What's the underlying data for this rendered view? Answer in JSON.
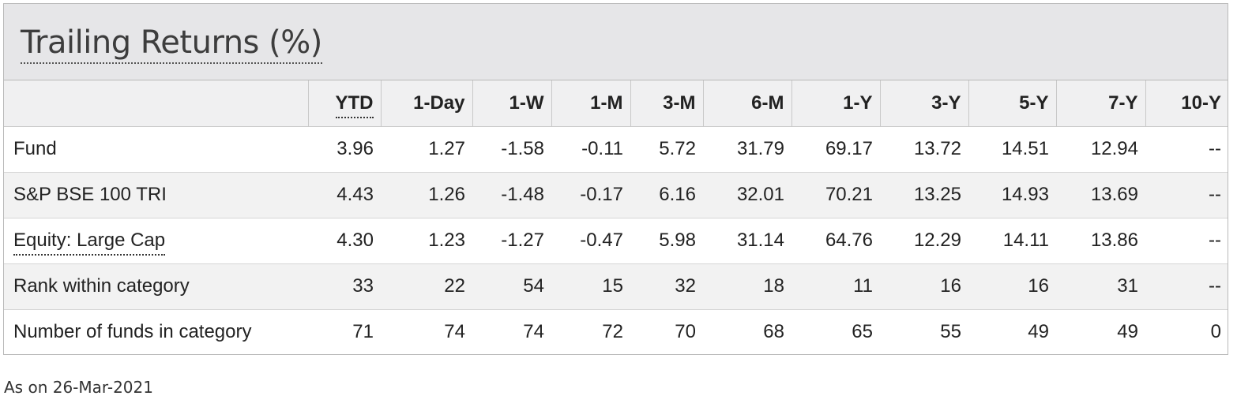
{
  "panel": {
    "title": "Trailing Returns (%)"
  },
  "table": {
    "headers": [
      "",
      "YTD",
      "1-Day",
      "1-W",
      "1-M",
      "3-M",
      "6-M",
      "1-Y",
      "3-Y",
      "5-Y",
      "7-Y",
      "10-Y"
    ],
    "rows": [
      {
        "label": "Fund",
        "values": [
          "3.96",
          "1.27",
          "-1.58",
          "-0.11",
          "5.72",
          "31.79",
          "69.17",
          "13.72",
          "14.51",
          "12.94",
          "--"
        ]
      },
      {
        "label": "S&P BSE 100 TRI",
        "values": [
          "4.43",
          "1.26",
          "-1.48",
          "-0.17",
          "6.16",
          "32.01",
          "70.21",
          "13.25",
          "14.93",
          "13.69",
          "--"
        ]
      },
      {
        "label": "Equity: Large Cap",
        "values": [
          "4.30",
          "1.23",
          "-1.27",
          "-0.47",
          "5.98",
          "31.14",
          "64.76",
          "12.29",
          "14.11",
          "13.86",
          "--"
        ]
      },
      {
        "label": "Rank within category",
        "values": [
          "33",
          "22",
          "54",
          "15",
          "32",
          "18",
          "11",
          "16",
          "16",
          "31",
          "--"
        ]
      },
      {
        "label": "Number of funds in category",
        "values": [
          "71",
          "74",
          "74",
          "72",
          "70",
          "68",
          "65",
          "55",
          "49",
          "49",
          "0"
        ]
      }
    ]
  },
  "footnote": "As on 26-Mar-2021",
  "colors": {
    "header_background": "#e6e6e8",
    "column_header_background": "#f0f0f1",
    "alternate_row_background": "#f2f2f2",
    "border": "#b9b9b9",
    "text": "#222222"
  }
}
